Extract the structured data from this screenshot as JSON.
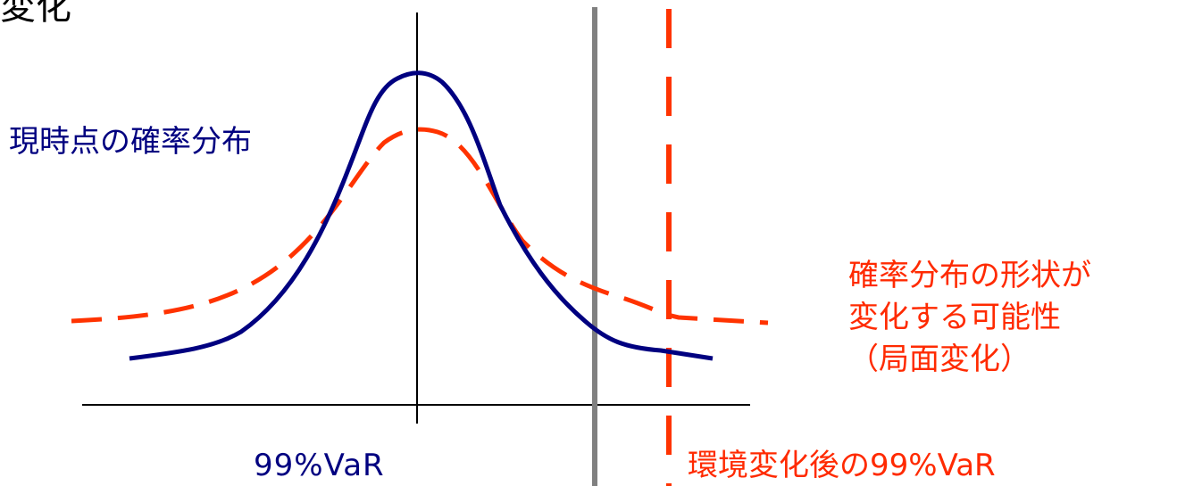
{
  "title_fragment": "変化",
  "labels": {
    "current_distribution": "現時点の確率分布",
    "var_99": "99%VaR",
    "var_99_after_change": "環境変化後の99%VaR"
  },
  "note": {
    "lines": [
      "確率分布の形状が",
      "変化する可能性",
      "（局面変化）"
    ]
  },
  "colors": {
    "current_curve": "#000080",
    "changed_curve": "#ff3300",
    "var_line": "#808080",
    "axis": "#000000",
    "note_text": "#ff2a00"
  }
}
